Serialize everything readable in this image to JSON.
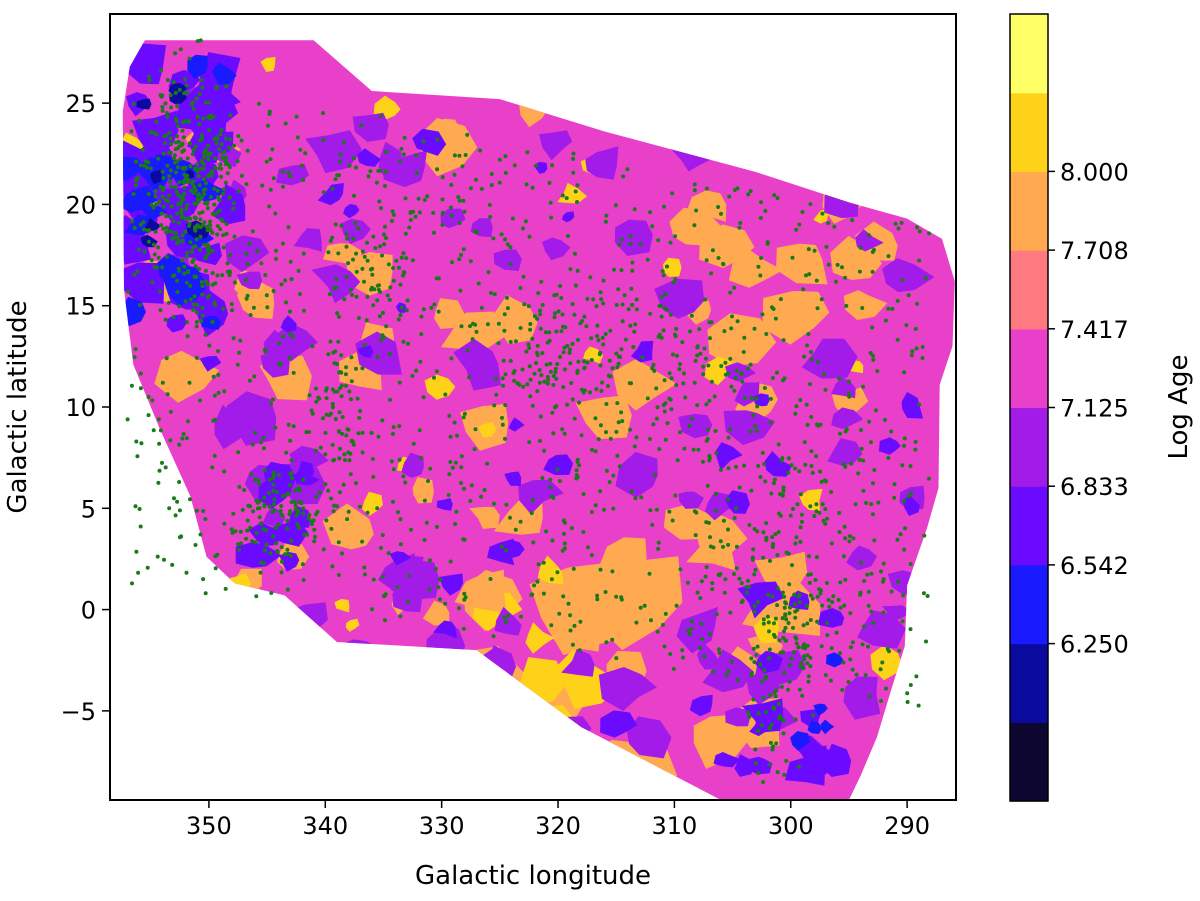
{
  "chart_data": {
    "type": "contourf_scatter",
    "title": "",
    "xlabel": "Galactic longitude",
    "ylabel": "Galactic latitude",
    "colorbar_label": "Log Age",
    "x_reversed": true,
    "xlim": [
      358.5,
      285.8
    ],
    "ylim": [
      -9.4,
      29.4
    ],
    "x_ticks": [
      350,
      340,
      330,
      320,
      310,
      300,
      290
    ],
    "x_tick_labels": [
      "350",
      "340",
      "330",
      "320",
      "310",
      "300",
      "290"
    ],
    "y_ticks": [
      25,
      20,
      15,
      10,
      5,
      0,
      -5
    ],
    "y_tick_labels": [
      "25",
      "20",
      "15",
      "10",
      "5",
      "0",
      "−5"
    ],
    "colorbar_levels": [
      5.958,
      6.25,
      6.542,
      6.833,
      7.125,
      7.417,
      7.708,
      8.0
    ],
    "colorbar_tick_labels": [
      "6.250",
      "6.542",
      "6.833",
      "7.125",
      "7.417",
      "7.708",
      "8.000"
    ],
    "colorbar_colors": [
      "#0d0630",
      "#0a0a9e",
      "#1a1aff",
      "#6a0aff",
      "#a21be8",
      "#e840c8",
      "#ff7a80",
      "#ffaa50",
      "#ffd21a",
      "#ffff66"
    ],
    "region_outline": [
      [
        355.5,
        28.1
      ],
      [
        341,
        28.1
      ],
      [
        336,
        25.6
      ],
      [
        325,
        25.2
      ],
      [
        316,
        23.6
      ],
      [
        303,
        21.6
      ],
      [
        295,
        20.1
      ],
      [
        290,
        19.3
      ],
      [
        287,
        18.3
      ],
      [
        285.9,
        16.2
      ],
      [
        286.1,
        13.0
      ],
      [
        287.2,
        11.1
      ],
      [
        287.3,
        6.0
      ],
      [
        288.3,
        4.0
      ],
      [
        290.0,
        1.2
      ],
      [
        290.2,
        -1.8
      ],
      [
        291.5,
        -4.2
      ],
      [
        292.6,
        -6.3
      ],
      [
        294.0,
        -8.2
      ],
      [
        295.0,
        -9.4
      ],
      [
        300,
        -9.4
      ],
      [
        306,
        -9.4
      ],
      [
        318,
        -5.8
      ],
      [
        327,
        -2.0
      ],
      [
        339,
        -1.6
      ],
      [
        343.5,
        0.7
      ],
      [
        347.8,
        1.3
      ],
      [
        350.2,
        2.6
      ],
      [
        351.6,
        5.6
      ],
      [
        354.2,
        8.9
      ],
      [
        356.5,
        12.1
      ],
      [
        357.3,
        15.8
      ],
      [
        357.4,
        24.6
      ],
      [
        356.8,
        26.8
      ],
      [
        355.5,
        28.1
      ]
    ],
    "scatter_color": "#1a7a1a",
    "scatter_note": "young-star positions overplotted as small green dots"
  }
}
